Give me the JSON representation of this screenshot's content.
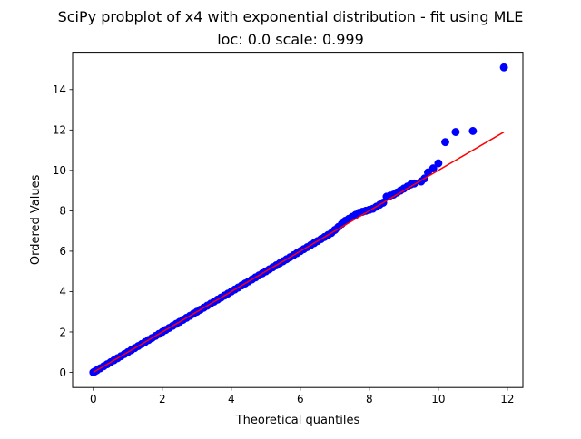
{
  "chart_data": {
    "type": "scatter",
    "title": "SciPy probplot of x4 with exponential distribution - fit using MLE",
    "subtitle": "loc: 0.0 scale: 0.999",
    "xlabel": "Theoretical quantiles",
    "ylabel": "Ordered Values",
    "xlim": [
      -0.6,
      12.45
    ],
    "ylim": [
      -0.75,
      15.85
    ],
    "xticks": [
      0,
      2,
      4,
      6,
      8,
      10,
      12
    ],
    "yticks": [
      0,
      2,
      4,
      6,
      8,
      10,
      12,
      14
    ],
    "grid": false,
    "legend": "none",
    "series": [
      {
        "marker": "circle",
        "color": "#0000ff",
        "points": [
          [
            0.0,
            0.0
          ],
          [
            0.05,
            0.05
          ],
          [
            0.1,
            0.1
          ],
          [
            0.2,
            0.2
          ],
          [
            0.3,
            0.3
          ],
          [
            0.4,
            0.4
          ],
          [
            0.5,
            0.5
          ],
          [
            0.6,
            0.6
          ],
          [
            0.7,
            0.7
          ],
          [
            0.8,
            0.8
          ],
          [
            0.9,
            0.9
          ],
          [
            1.0,
            1.0
          ],
          [
            1.1,
            1.1
          ],
          [
            1.2,
            1.2
          ],
          [
            1.3,
            1.3
          ],
          [
            1.4,
            1.4
          ],
          [
            1.5,
            1.5
          ],
          [
            1.6,
            1.6
          ],
          [
            1.7,
            1.7
          ],
          [
            1.8,
            1.8
          ],
          [
            1.9,
            1.9
          ],
          [
            2.0,
            2.0
          ],
          [
            2.1,
            2.1
          ],
          [
            2.2,
            2.2
          ],
          [
            2.3,
            2.3
          ],
          [
            2.4,
            2.4
          ],
          [
            2.5,
            2.5
          ],
          [
            2.6,
            2.6
          ],
          [
            2.7,
            2.7
          ],
          [
            2.8,
            2.8
          ],
          [
            2.9,
            2.9
          ],
          [
            3.0,
            3.0
          ],
          [
            3.1,
            3.1
          ],
          [
            3.2,
            3.2
          ],
          [
            3.3,
            3.3
          ],
          [
            3.4,
            3.4
          ],
          [
            3.5,
            3.5
          ],
          [
            3.6,
            3.6
          ],
          [
            3.7,
            3.7
          ],
          [
            3.8,
            3.8
          ],
          [
            3.9,
            3.9
          ],
          [
            4.0,
            4.0
          ],
          [
            4.1,
            4.1
          ],
          [
            4.2,
            4.2
          ],
          [
            4.3,
            4.3
          ],
          [
            4.4,
            4.4
          ],
          [
            4.5,
            4.5
          ],
          [
            4.6,
            4.6
          ],
          [
            4.7,
            4.7
          ],
          [
            4.8,
            4.8
          ],
          [
            4.9,
            4.9
          ],
          [
            5.0,
            5.0
          ],
          [
            5.1,
            5.1
          ],
          [
            5.2,
            5.2
          ],
          [
            5.3,
            5.3
          ],
          [
            5.4,
            5.4
          ],
          [
            5.5,
            5.5
          ],
          [
            5.6,
            5.6
          ],
          [
            5.7,
            5.7
          ],
          [
            5.8,
            5.8
          ],
          [
            5.9,
            5.9
          ],
          [
            6.0,
            6.0
          ],
          [
            6.1,
            6.1
          ],
          [
            6.2,
            6.2
          ],
          [
            6.3,
            6.3
          ],
          [
            6.4,
            6.4
          ],
          [
            6.5,
            6.5
          ],
          [
            6.6,
            6.6
          ],
          [
            6.7,
            6.7
          ],
          [
            6.8,
            6.8
          ],
          [
            6.9,
            6.9
          ],
          [
            7.0,
            7.05
          ],
          [
            7.1,
            7.2
          ],
          [
            7.2,
            7.35
          ],
          [
            7.3,
            7.5
          ],
          [
            7.4,
            7.6
          ],
          [
            7.5,
            7.7
          ],
          [
            7.6,
            7.8
          ],
          [
            7.7,
            7.9
          ],
          [
            7.8,
            7.95
          ],
          [
            7.9,
            8.0
          ],
          [
            8.0,
            8.05
          ],
          [
            8.1,
            8.1
          ],
          [
            8.2,
            8.2
          ],
          [
            8.3,
            8.3
          ],
          [
            8.4,
            8.4
          ],
          [
            8.5,
            8.7
          ],
          [
            8.6,
            8.75
          ],
          [
            8.7,
            8.8
          ],
          [
            8.8,
            8.9
          ],
          [
            8.9,
            9.0
          ],
          [
            9.0,
            9.1
          ],
          [
            9.1,
            9.2
          ],
          [
            9.2,
            9.3
          ],
          [
            9.3,
            9.35
          ],
          [
            9.5,
            9.45
          ],
          [
            9.6,
            9.6
          ],
          [
            9.7,
            9.9
          ],
          [
            9.85,
            10.1
          ],
          [
            10.0,
            10.35
          ],
          [
            10.2,
            11.4
          ],
          [
            10.5,
            11.9
          ],
          [
            11.0,
            11.95
          ],
          [
            11.9,
            15.1
          ]
        ]
      },
      {
        "marker": "line",
        "color": "#ff0000",
        "points": [
          [
            0.0,
            0.0
          ],
          [
            11.9,
            11.9
          ]
        ]
      }
    ]
  }
}
